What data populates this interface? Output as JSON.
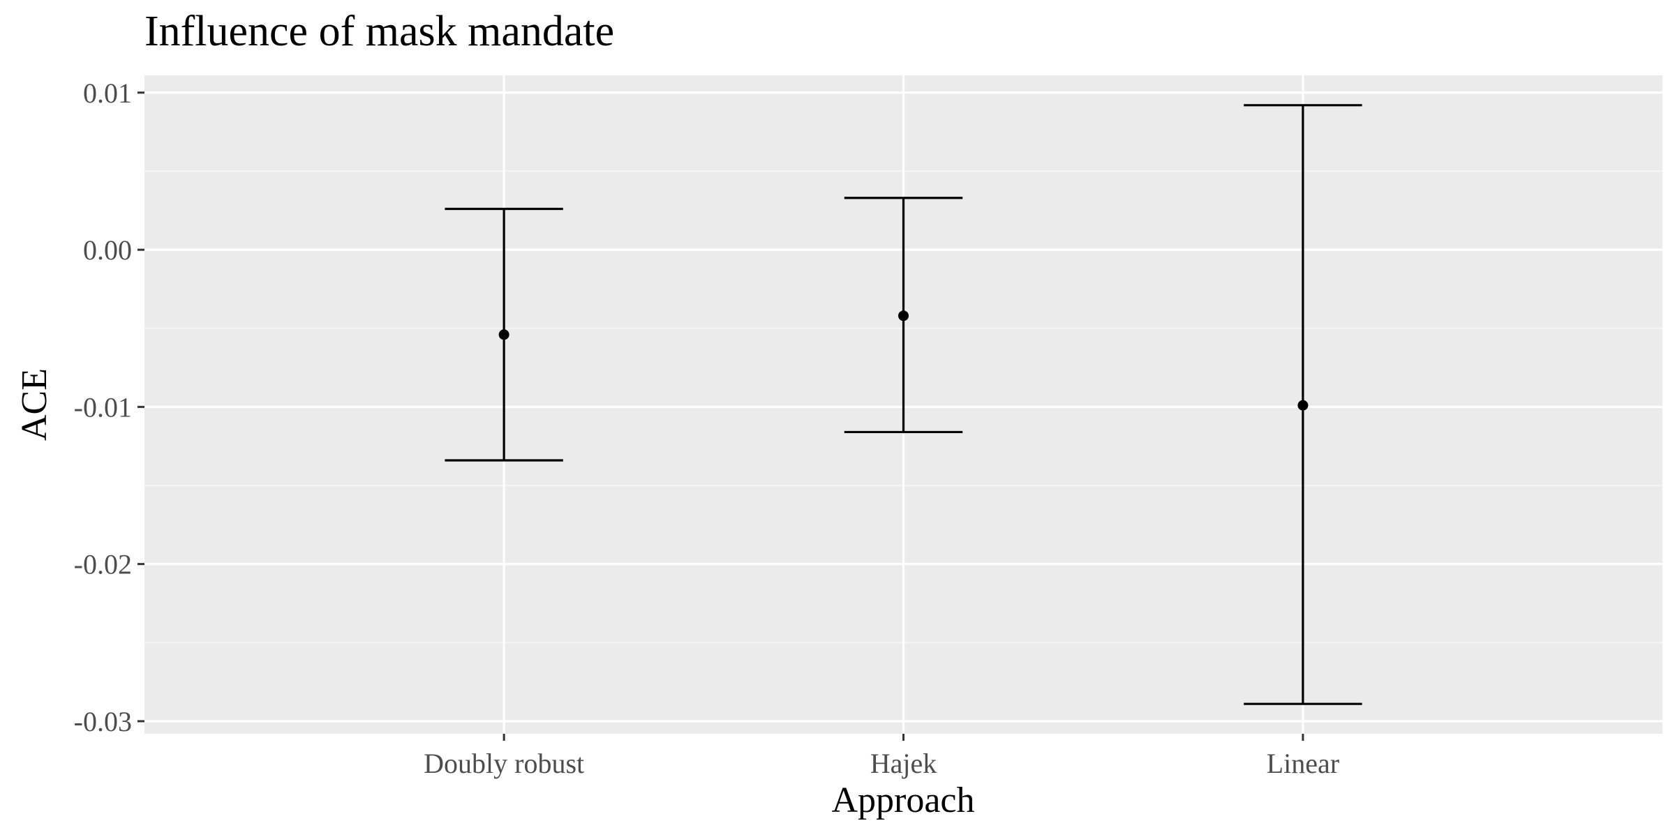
{
  "chart_data": {
    "type": "errorbar",
    "title": "Influence of mask mandate",
    "xlabel": "Approach",
    "ylabel": "ACE",
    "categories": [
      "Doubly robust",
      "Hajek",
      "Linear"
    ],
    "estimate": [
      -0.0054,
      -0.0042,
      -0.0099
    ],
    "lower": [
      -0.0134,
      -0.0116,
      -0.0289
    ],
    "upper": [
      0.0026,
      0.0033,
      0.0092
    ],
    "ylim": [
      -0.0308,
      0.0111
    ],
    "yticks": [
      0.01,
      0.0,
      -0.01,
      -0.02,
      -0.03
    ],
    "ytick_labels": [
      "0.01",
      "0.00",
      "-0.01",
      "-0.02",
      "-0.03"
    ],
    "grid": true,
    "legend": "none"
  },
  "colors": {
    "panel_background": "#ebebeb",
    "grid_major": "#ffffff",
    "grid_minor": "#f7f7f7",
    "marks": "#000000",
    "tick_text": "#4d4d4d",
    "title_text": "#000000"
  }
}
